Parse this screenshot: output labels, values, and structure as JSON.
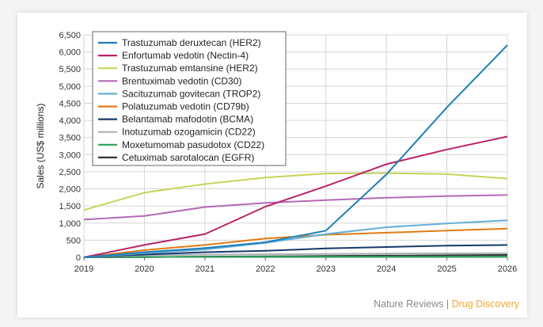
{
  "chart_data": {
    "type": "line",
    "title": "",
    "xlabel": "",
    "ylabel": "Sales (US$ millions)",
    "x": [
      "2019",
      "2020",
      "2021",
      "2022",
      "2023",
      "2024",
      "2025",
      "2026"
    ],
    "ylim": [
      0,
      6500
    ],
    "yticks": [
      "0",
      "500",
      "1,000",
      "1,500",
      "2,000",
      "2,500",
      "3,000",
      "3,500",
      "4,000",
      "4,500",
      "5,000",
      "5,500",
      "6,000",
      "6,500"
    ],
    "ytick_values": [
      0,
      500,
      1000,
      1500,
      2000,
      2500,
      3000,
      3500,
      4000,
      4500,
      5000,
      5500,
      6000,
      6500
    ],
    "legend_position": "top-left",
    "series": [
      {
        "name": "Trastuzumab deruxtecan (HER2)",
        "color": "#1f7fb4",
        "values": [
          0,
          150,
          270,
          440,
          780,
          2420,
          4380,
          6200
        ]
      },
      {
        "name": "Enfortumab vedotin (Nectin-4)",
        "color": "#b8246a",
        "values": [
          0,
          360,
          680,
          1480,
          2080,
          2720,
          3150,
          3530
        ]
      },
      {
        "name": "Trastuzumab emtansine (HER2)",
        "color": "#c9d35a",
        "values": [
          1380,
          1890,
          2140,
          2330,
          2450,
          2460,
          2430,
          2300
        ]
      },
      {
        "name": "Brentuximab vedotin (CD30)",
        "color": "#b569b5",
        "values": [
          1100,
          1210,
          1470,
          1590,
          1670,
          1740,
          1790,
          1820
        ]
      },
      {
        "name": "Sacituzumab govitecan (TROP2)",
        "color": "#62afd9",
        "values": [
          0,
          120,
          230,
          420,
          680,
          880,
          990,
          1080
        ]
      },
      {
        "name": "Polatuzumab vedotin (CD79b)",
        "color": "#e07b14",
        "values": [
          0,
          210,
          360,
          550,
          660,
          720,
          780,
          840
        ]
      },
      {
        "name": "Belantamab mafodotin (BCMA)",
        "color": "#163a6b",
        "values": [
          0,
          80,
          150,
          190,
          260,
          300,
          340,
          360
        ]
      },
      {
        "name": "Inotuzumab ozogamicin (CD22)",
        "color": "#aab2b4",
        "values": [
          0,
          60,
          80,
          90,
          100,
          110,
          115,
          120
        ]
      },
      {
        "name": "Moxetumomab pasudotox (CD22)",
        "color": "#2aa05a",
        "values": [
          0,
          10,
          15,
          20,
          20,
          20,
          20,
          20
        ]
      },
      {
        "name": "Cetuximab sarotalocan (EGFR)",
        "color": "#333333",
        "values": [
          0,
          5,
          20,
          30,
          40,
          50,
          60,
          70
        ]
      }
    ]
  },
  "credit": {
    "part1": "Nature Reviews",
    "separator": " | ",
    "part2": "Drug Discovery",
    "color1": "#8a8a8a",
    "color2": "#f0a830"
  }
}
